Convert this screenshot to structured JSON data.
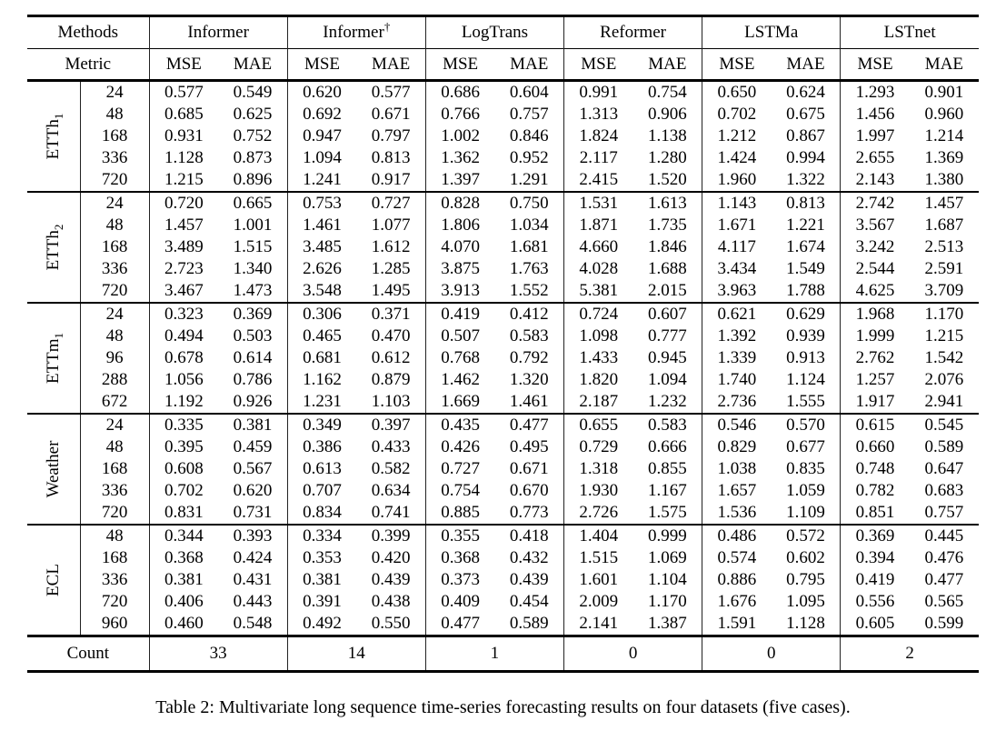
{
  "table": {
    "header": {
      "methods_label": "Methods",
      "metric_label": "Metric"
    },
    "methods": [
      {
        "label": "Informer"
      },
      {
        "label": "Informer",
        "sup": "†"
      },
      {
        "label": "LogTrans"
      },
      {
        "label": "Reformer"
      },
      {
        "label": "LSTMa"
      },
      {
        "label": "LSTnet"
      }
    ],
    "metrics": [
      "MSE",
      "MAE"
    ],
    "groups": [
      {
        "label": {
          "main": "ETTh",
          "sub": "1"
        },
        "rows": [
          {
            "horizon": "24",
            "values": [
              "0.577",
              "0.549",
              "0.620",
              "0.577",
              "0.686",
              "0.604",
              "0.991",
              "0.754",
              "0.650",
              "0.624",
              "1.293",
              "0.901"
            ],
            "bold": [
              0,
              1
            ]
          },
          {
            "horizon": "48",
            "values": [
              "0.685",
              "0.625",
              "0.692",
              "0.671",
              "0.766",
              "0.757",
              "1.313",
              "0.906",
              "0.702",
              "0.675",
              "1.456",
              "0.960"
            ],
            "bold": [
              0,
              1
            ]
          },
          {
            "horizon": "168",
            "values": [
              "0.931",
              "0.752",
              "0.947",
              "0.797",
              "1.002",
              "0.846",
              "1.824",
              "1.138",
              "1.212",
              "0.867",
              "1.997",
              "1.214"
            ],
            "bold": [
              0,
              1
            ]
          },
          {
            "horizon": "336",
            "values": [
              "1.128",
              "0.873",
              "1.094",
              "0.813",
              "1.362",
              "0.952",
              "2.117",
              "1.280",
              "1.424",
              "0.994",
              "2.655",
              "1.369"
            ],
            "bold": [
              2,
              3
            ]
          },
          {
            "horizon": "720",
            "values": [
              "1.215",
              "0.896",
              "1.241",
              "0.917",
              "1.397",
              "1.291",
              "2.415",
              "1.520",
              "1.960",
              "1.322",
              "2.143",
              "1.380"
            ],
            "bold": [
              0,
              1
            ]
          }
        ]
      },
      {
        "label": {
          "main": "ETTh",
          "sub": "2"
        },
        "rows": [
          {
            "horizon": "24",
            "values": [
              "0.720",
              "0.665",
              "0.753",
              "0.727",
              "0.828",
              "0.750",
              "1.531",
              "1.613",
              "1.143",
              "0.813",
              "2.742",
              "1.457"
            ],
            "bold": [
              0,
              1
            ]
          },
          {
            "horizon": "48",
            "values": [
              "1.457",
              "1.001",
              "1.461",
              "1.077",
              "1.806",
              "1.034",
              "1.871",
              "1.735",
              "1.671",
              "1.221",
              "3.567",
              "1.687"
            ],
            "bold": [
              0,
              1
            ]
          },
          {
            "horizon": "168",
            "values": [
              "3.489",
              "1.515",
              "3.485",
              "1.612",
              "4.070",
              "1.681",
              "4.660",
              "1.846",
              "4.117",
              "1.674",
              "3.242",
              "2.513"
            ],
            "bold": [
              1,
              10
            ]
          },
          {
            "horizon": "336",
            "values": [
              "2.723",
              "1.340",
              "2.626",
              "1.285",
              "3.875",
              "1.763",
              "4.028",
              "1.688",
              "3.434",
              "1.549",
              "2.544",
              "2.591"
            ],
            "bold": [
              3,
              10
            ]
          },
          {
            "horizon": "720",
            "values": [
              "3.467",
              "1.473",
              "3.548",
              "1.495",
              "3.913",
              "1.552",
              "5.381",
              "2.015",
              "3.963",
              "1.788",
              "4.625",
              "3.709"
            ],
            "bold": [
              0,
              1
            ]
          }
        ]
      },
      {
        "label": {
          "main": "ETTm",
          "sub": "1"
        },
        "rows": [
          {
            "horizon": "24",
            "values": [
              "0.323",
              "0.369",
              "0.306",
              "0.371",
              "0.419",
              "0.412",
              "0.724",
              "0.607",
              "0.621",
              "0.629",
              "1.968",
              "1.170"
            ],
            "bold": [
              1,
              2
            ]
          },
          {
            "horizon": "48",
            "values": [
              "0.494",
              "0.503",
              "0.465",
              "0.470",
              "0.507",
              "0.583",
              "1.098",
              "0.777",
              "1.392",
              "0.939",
              "1.999",
              "1.215"
            ],
            "bold": [
              2,
              3
            ]
          },
          {
            "horizon": "96",
            "values": [
              "0.678",
              "0.614",
              "0.681",
              "0.612",
              "0.768",
              "0.792",
              "1.433",
              "0.945",
              "1.339",
              "0.913",
              "2.762",
              "1.542"
            ],
            "bold": [
              0,
              3
            ]
          },
          {
            "horizon": "288",
            "values": [
              "1.056",
              "0.786",
              "1.162",
              "0.879",
              "1.462",
              "1.320",
              "1.820",
              "1.094",
              "1.740",
              "1.124",
              "1.257",
              "2.076"
            ],
            "bold": [
              0,
              1
            ]
          },
          {
            "horizon": "672",
            "values": [
              "1.192",
              "0.926",
              "1.231",
              "1.103",
              "1.669",
              "1.461",
              "2.187",
              "1.232",
              "2.736",
              "1.555",
              "1.917",
              "2.941"
            ],
            "bold": [
              0,
              1
            ]
          }
        ]
      },
      {
        "label": {
          "main": "Weather",
          "sub": ""
        },
        "rows": [
          {
            "horizon": "24",
            "values": [
              "0.335",
              "0.381",
              "0.349",
              "0.397",
              "0.435",
              "0.477",
              "0.655",
              "0.583",
              "0.546",
              "0.570",
              "0.615",
              "0.545"
            ],
            "bold": [
              0,
              1
            ]
          },
          {
            "horizon": "48",
            "values": [
              "0.395",
              "0.459",
              "0.386",
              "0.433",
              "0.426",
              "0.495",
              "0.729",
              "0.666",
              "0.829",
              "0.677",
              "0.660",
              "0.589"
            ],
            "bold": [
              2,
              3
            ]
          },
          {
            "horizon": "168",
            "values": [
              "0.608",
              "0.567",
              "0.613",
              "0.582",
              "0.727",
              "0.671",
              "1.318",
              "0.855",
              "1.038",
              "0.835",
              "0.748",
              "0.647"
            ],
            "bold": [
              0,
              1
            ]
          },
          {
            "horizon": "336",
            "values": [
              "0.702",
              "0.620",
              "0.707",
              "0.634",
              "0.754",
              "0.670",
              "1.930",
              "1.167",
              "1.657",
              "1.059",
              "0.782",
              "0.683"
            ],
            "bold": [
              0,
              1
            ]
          },
          {
            "horizon": "720",
            "values": [
              "0.831",
              "0.731",
              "0.834",
              "0.741",
              "0.885",
              "0.773",
              "2.726",
              "1.575",
              "1.536",
              "1.109",
              "0.851",
              "0.757"
            ],
            "bold": [
              0,
              1
            ]
          }
        ]
      },
      {
        "label": {
          "main": "ECL",
          "sub": ""
        },
        "rows": [
          {
            "horizon": "48",
            "values": [
              "0.344",
              "0.393",
              "0.334",
              "0.399",
              "0.355",
              "0.418",
              "1.404",
              "0.999",
              "0.486",
              "0.572",
              "0.369",
              "0.445"
            ],
            "bold": [
              1,
              2
            ]
          },
          {
            "horizon": "168",
            "values": [
              "0.368",
              "0.424",
              "0.353",
              "0.420",
              "0.368",
              "0.432",
              "1.515",
              "1.069",
              "0.574",
              "0.602",
              "0.394",
              "0.476"
            ],
            "bold": [
              2,
              3
            ]
          },
          {
            "horizon": "336",
            "values": [
              "0.381",
              "0.431",
              "0.381",
              "0.439",
              "0.373",
              "0.439",
              "1.601",
              "1.104",
              "0.886",
              "0.795",
              "0.419",
              "0.477"
            ],
            "bold": [
              1,
              4
            ]
          },
          {
            "horizon": "720",
            "values": [
              "0.406",
              "0.443",
              "0.391",
              "0.438",
              "0.409",
              "0.454",
              "2.009",
              "1.170",
              "1.676",
              "1.095",
              "0.556",
              "0.565"
            ],
            "bold": [
              2,
              3
            ]
          },
          {
            "horizon": "960",
            "values": [
              "0.460",
              "0.548",
              "0.492",
              "0.550",
              "0.477",
              "0.589",
              "2.141",
              "1.387",
              "1.591",
              "1.128",
              "0.605",
              "0.599"
            ],
            "bold": [
              0,
              1
            ]
          }
        ]
      }
    ],
    "count": {
      "label": "Count",
      "values": [
        "33",
        "14",
        "1",
        "0",
        "0",
        "2"
      ]
    }
  },
  "caption": "Table 2: Multivariate long sequence time-series forecasting results on four datasets (five cases)."
}
